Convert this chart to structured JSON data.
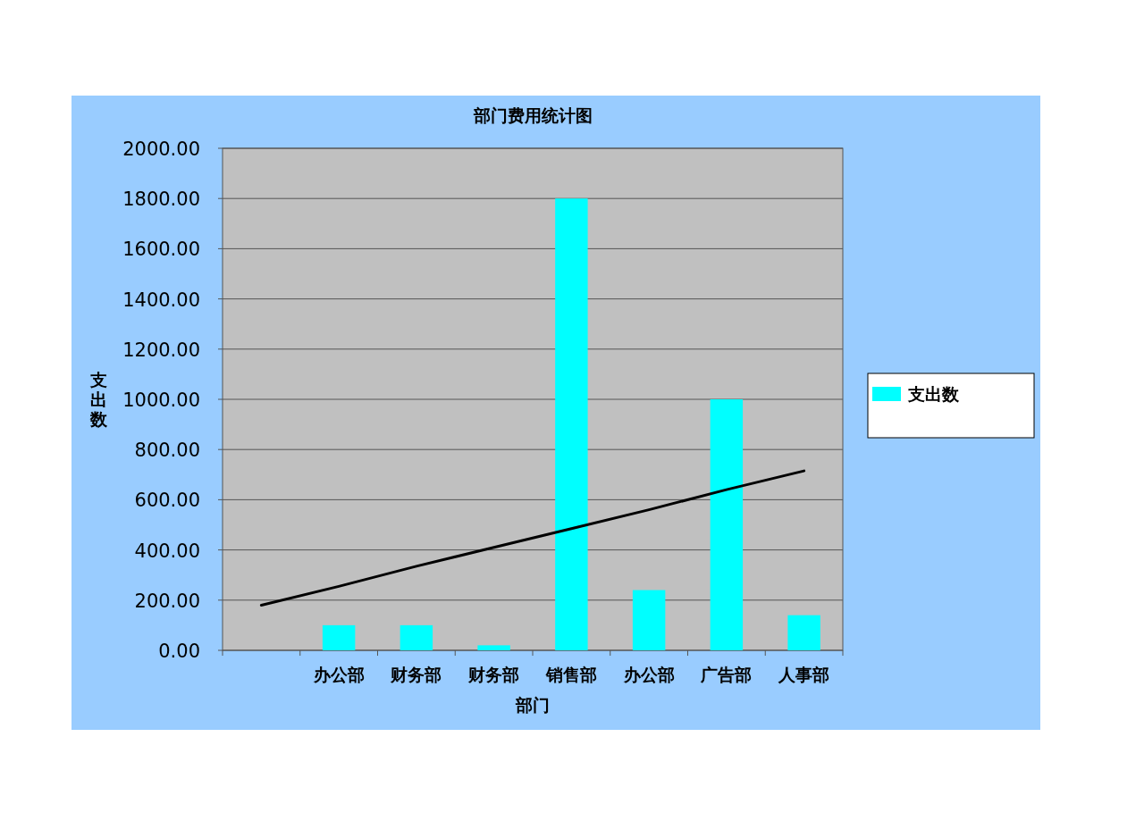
{
  "chart_data": {
    "type": "bar",
    "title": "部门费用统计图",
    "xlabel": "部门",
    "ylabel": "支出数",
    "categories": [
      null,
      "办公部",
      "财务部",
      "财务部",
      "销售部",
      "办公部",
      "广告部",
      "人事部"
    ],
    "series": [
      {
        "name": "支出数",
        "color": "#00ffff",
        "values": [
          null,
          100,
          100,
          20,
          1800,
          240,
          1000,
          140
        ]
      },
      {
        "type": "line",
        "color": "#000000",
        "values": [
          180,
          255,
          335,
          410,
          485,
          560,
          640,
          715
        ]
      }
    ],
    "ylim": [
      0,
      2000
    ],
    "yticks": [
      {
        "value": 0,
        "label": "0.00"
      },
      {
        "value": 200,
        "label": "200.00"
      },
      {
        "value": 400,
        "label": "400.00"
      },
      {
        "value": 600,
        "label": "600.00"
      },
      {
        "value": 800,
        "label": "800.00"
      },
      {
        "value": 1000,
        "label": "1000.00"
      },
      {
        "value": 1200,
        "label": "1200.00"
      },
      {
        "value": 1400,
        "label": "1400.00"
      },
      {
        "value": 1600,
        "label": "1600.00"
      },
      {
        "value": 1800,
        "label": "1800.00"
      },
      {
        "value": 2000,
        "label": "2000.00"
      }
    ],
    "grid": "y",
    "legend": "right"
  }
}
